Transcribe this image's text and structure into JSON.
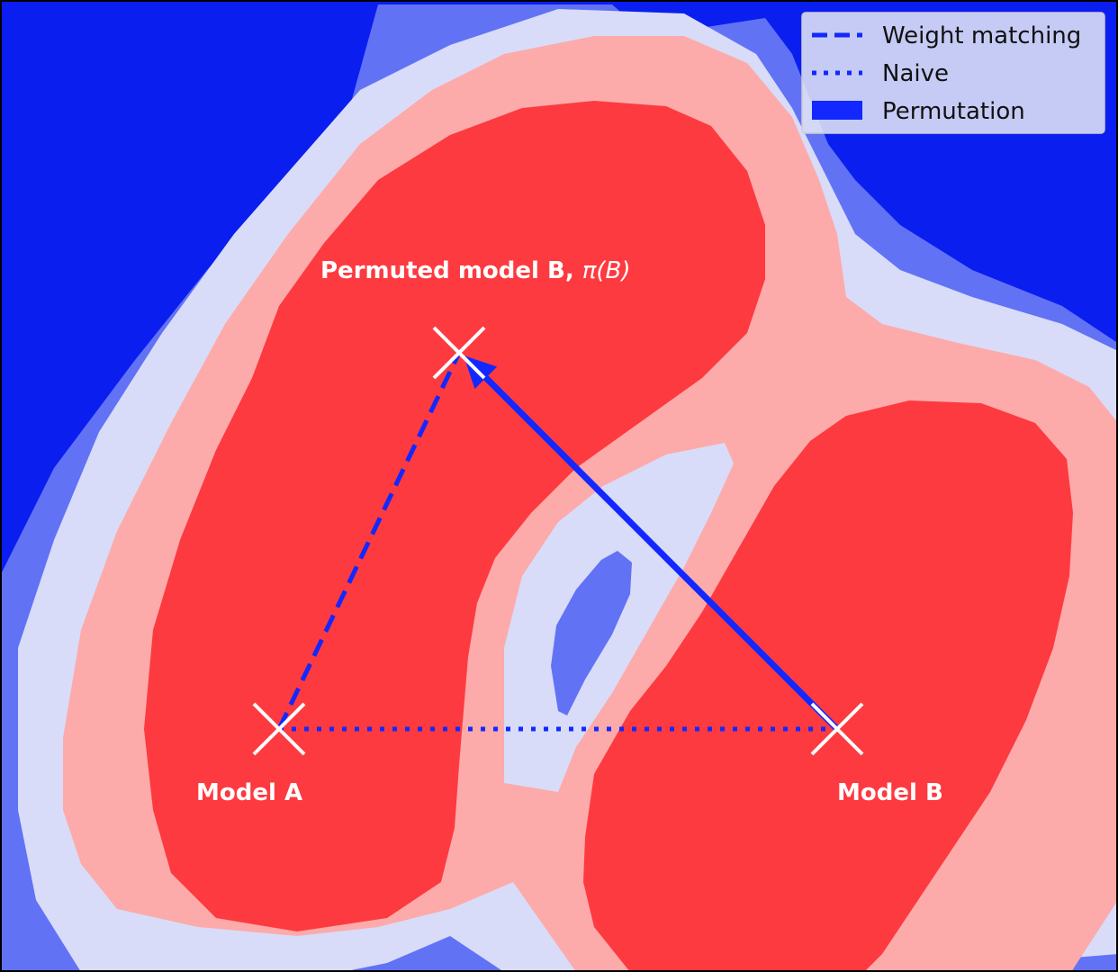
{
  "labels": {
    "permuted_prefix": "Permuted model B, ",
    "permuted_math": "π(B)",
    "model_a": "Model A",
    "model_b": "Model B"
  },
  "legend": {
    "items": [
      {
        "label": "Weight matching",
        "style": "dashed"
      },
      {
        "label": "Naive",
        "style": "dotted"
      },
      {
        "label": "Permutation",
        "style": "patch"
      }
    ]
  },
  "colors": {
    "path_blue": "#1228ff",
    "level_dark_blue": "#0a1ef0",
    "level_mid_blue": "#6272f5",
    "level_light_blue": "#d8dcf8",
    "level_light_red": "#fdaaaa",
    "level_red": "#fd3a40",
    "marker": "#ffffff"
  }
}
